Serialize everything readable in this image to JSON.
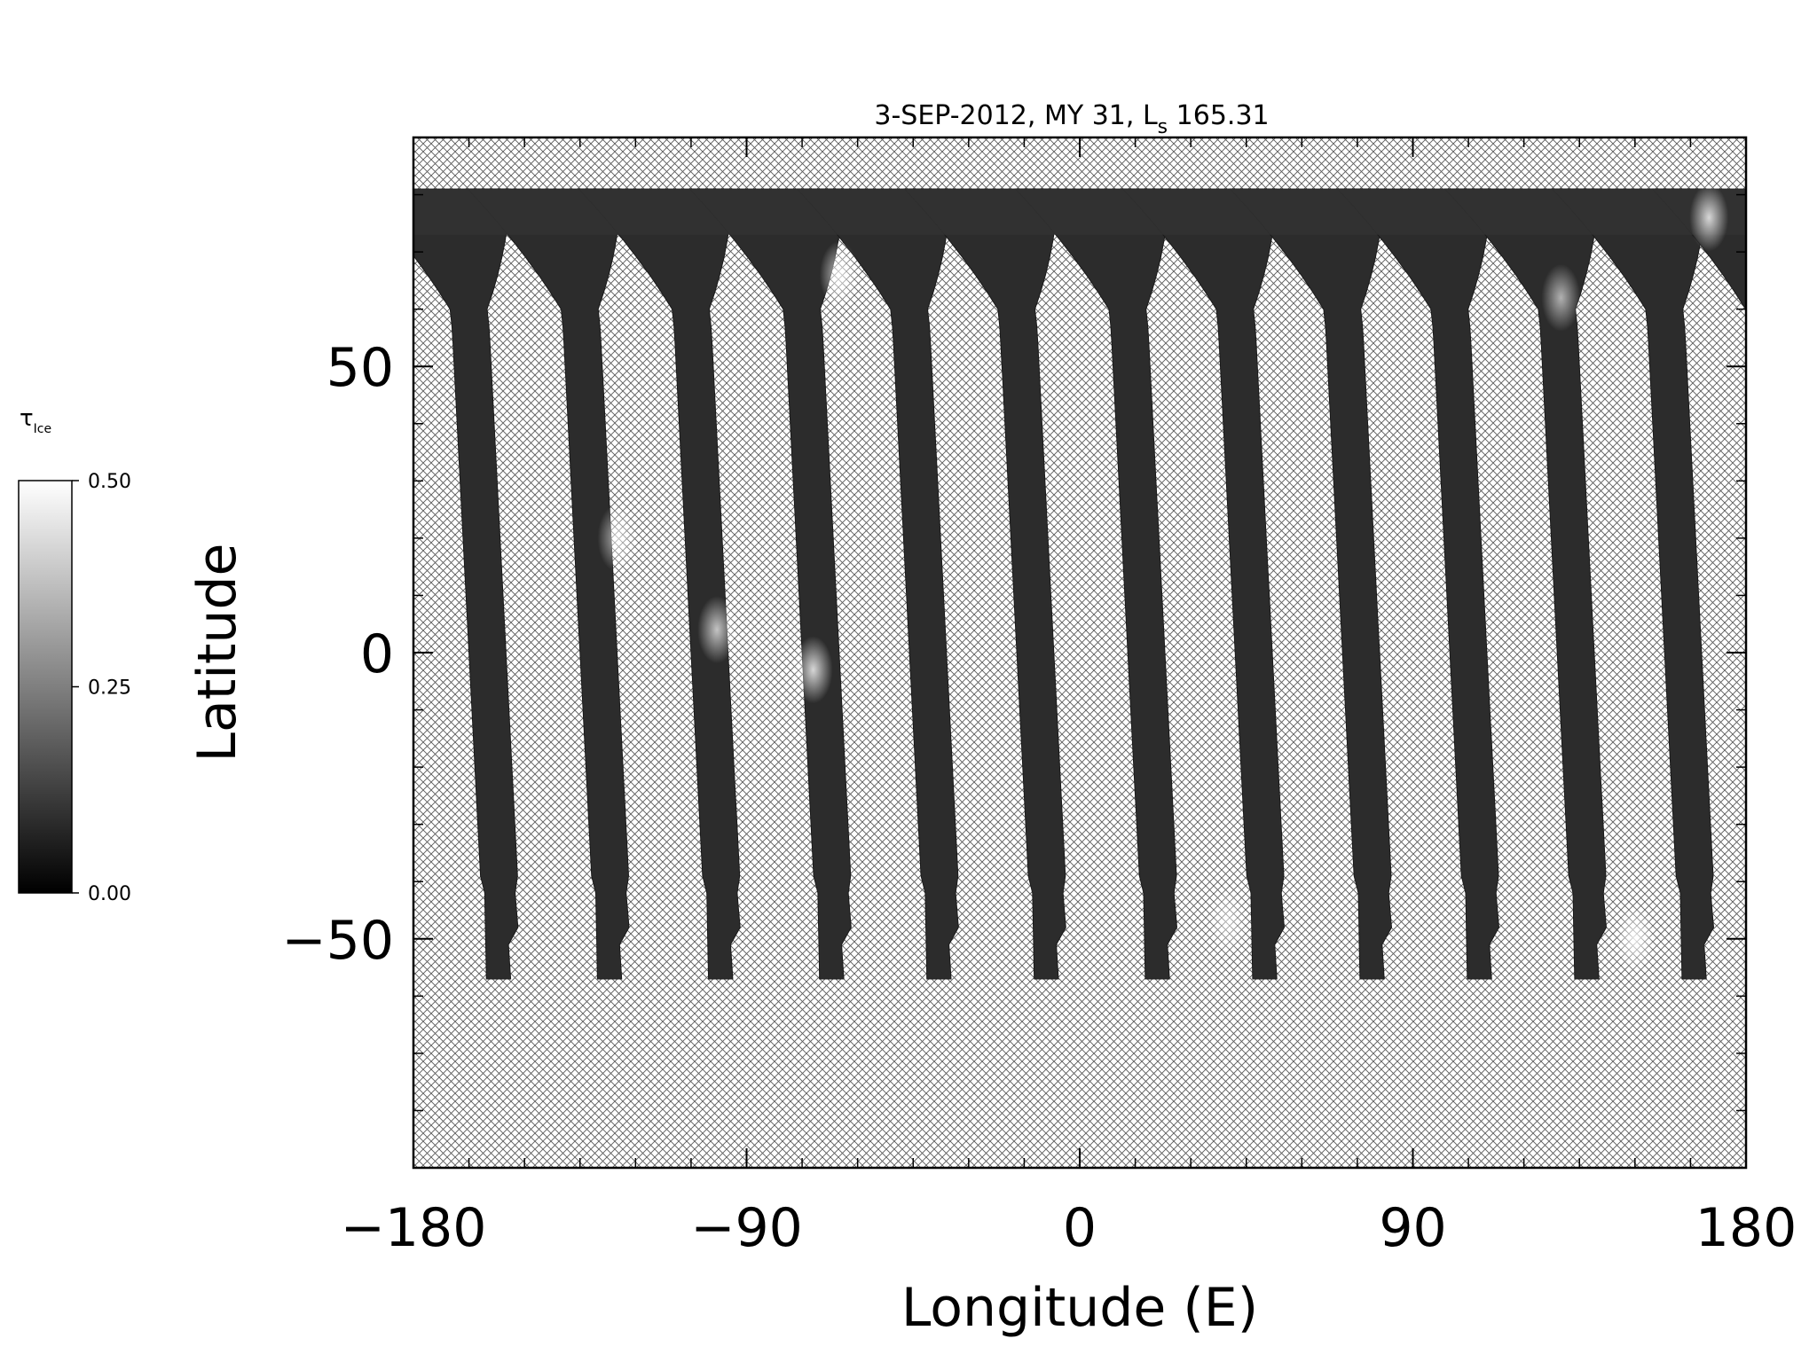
{
  "chart_data": {
    "type": "heatmap",
    "title_main": "3-SEP-2012, MY 31,  L",
    "title_sub": "s",
    "title_value": " 165.31",
    "xlabel": "Longitude (E)",
    "ylabel": "Latitude",
    "xlim": [
      -180,
      180
    ],
    "ylim": [
      -90,
      90
    ],
    "x_ticks": [
      -180,
      -90,
      0,
      90,
      180
    ],
    "x_tick_labels": [
      "−180",
      "−90",
      "0",
      "90",
      "180"
    ],
    "y_ticks": [
      -50,
      0,
      50
    ],
    "y_tick_labels": [
      "−50",
      "0",
      "50"
    ],
    "missing_data_fill": "crosshatch",
    "colormap": "grayscale",
    "colorbar": {
      "label_main": "τ",
      "label_sub": "Ice",
      "min": 0.0,
      "max": 0.5,
      "ticks": [
        0.0,
        0.25,
        0.5
      ],
      "tick_labels": [
        "0.00",
        "0.25",
        "0.50"
      ]
    },
    "swaths": {
      "count": 13,
      "equator_lon": [
        -160,
        -130,
        -100,
        -70,
        -41,
        -12,
        18,
        47,
        76,
        105,
        134,
        163,
        190
      ],
      "lat_top": 81,
      "lat_bottom": -57,
      "bright_patches": [
        {
          "lon": -72,
          "lat": -3,
          "value": 0.45
        },
        {
          "lon": -98,
          "lat": 4,
          "value": 0.4
        },
        {
          "lon": -125,
          "lat": 20,
          "value": 0.35
        },
        {
          "lon": -65,
          "lat": 66,
          "value": 0.4
        },
        {
          "lon": 130,
          "lat": 62,
          "value": 0.35
        },
        {
          "lon": 150,
          "lat": -50,
          "value": 0.45
        },
        {
          "lon": 170,
          "lat": 76,
          "value": 0.45
        },
        {
          "lon": 40,
          "lat": -47,
          "value": 0.3
        }
      ]
    },
    "colors": {
      "axis": "#000000",
      "hatch": "#555555",
      "swath_base": "#2c2c2c"
    }
  }
}
